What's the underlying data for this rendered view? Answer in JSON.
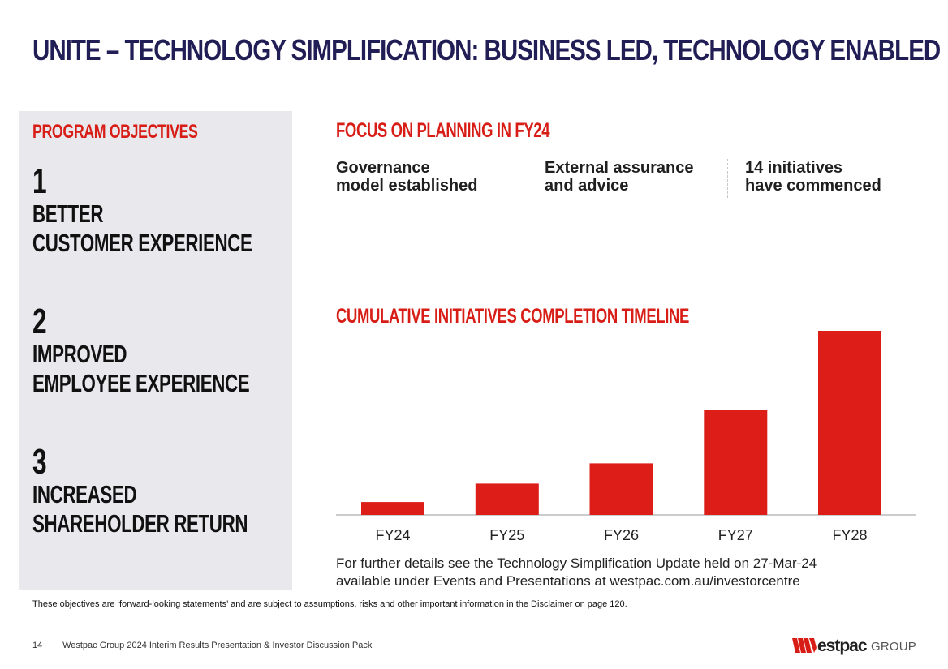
{
  "header": {
    "title": "UNITE – TECHNOLOGY SIMPLIFICATION: BUSINESS LED, TECHNOLOGY ENABLED"
  },
  "program": {
    "heading": "PROGRAM OBJECTIVES",
    "objectives": [
      {
        "number": "1",
        "line1": "BETTER",
        "line2": "CUSTOMER EXPERIENCE"
      },
      {
        "number": "2",
        "line1": "IMPROVED",
        "line2": "EMPLOYEE EXPERIENCE"
      },
      {
        "number": "3",
        "line1": "INCREASED",
        "line2": "SHAREHOLDER RETURN"
      }
    ]
  },
  "focus": {
    "heading": "FOCUS ON PLANNING IN FY24",
    "items": [
      "Governance\nmodel established",
      "External assurance\nand advice",
      "14 initiatives\nhave commenced"
    ]
  },
  "chart_data": {
    "type": "bar",
    "title": "CUMULATIVE INITIATIVES COMPLETION TIMELINE",
    "categories": [
      "FY24",
      "FY25",
      "FY26",
      "FY27",
      "FY28"
    ],
    "values": [
      7,
      17,
      28,
      57,
      100
    ],
    "ylim": [
      0,
      100
    ],
    "xlabel": "",
    "ylabel": "",
    "grid": false,
    "color": "#dc1d18"
  },
  "details": {
    "line1": "For further details see the Technology Simplification Update held on 27-Mar-24",
    "line2": "available under Events and Presentations at westpac.com.au/investorcentre"
  },
  "disclaimer": "These objectives  are ‘forward-looking statements’ and are subject to assumptions, risks and other important information in the Disclaimer on page 120.",
  "footer": {
    "page": "14",
    "title": "Westpac Group 2024 Interim Results Presentation & Investor Discussion Pack",
    "logo_word": "estpac",
    "logo_suffix": "GROUP"
  },
  "colors": {
    "brand_red": "#d71d16",
    "navy": "#211d55",
    "panel_grey": "#e8e8ed"
  }
}
